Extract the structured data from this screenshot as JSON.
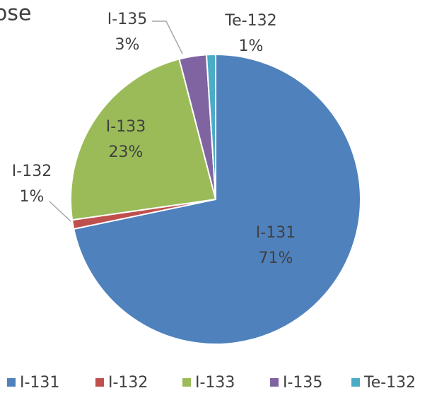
{
  "chart_data": {
    "type": "pie",
    "title": "ose",
    "categories": [
      "I-131",
      "I-132",
      "I-133",
      "I-135",
      "Te-132"
    ],
    "values": [
      71,
      1,
      23,
      3,
      1
    ],
    "value_labels": [
      "71%",
      "1%",
      "23%",
      "3%",
      "1%"
    ],
    "colors": [
      "#4f81bd",
      "#c0504d",
      "#9bbb59",
      "#8064a2",
      "#4bacc6"
    ],
    "legend": "bottom"
  }
}
